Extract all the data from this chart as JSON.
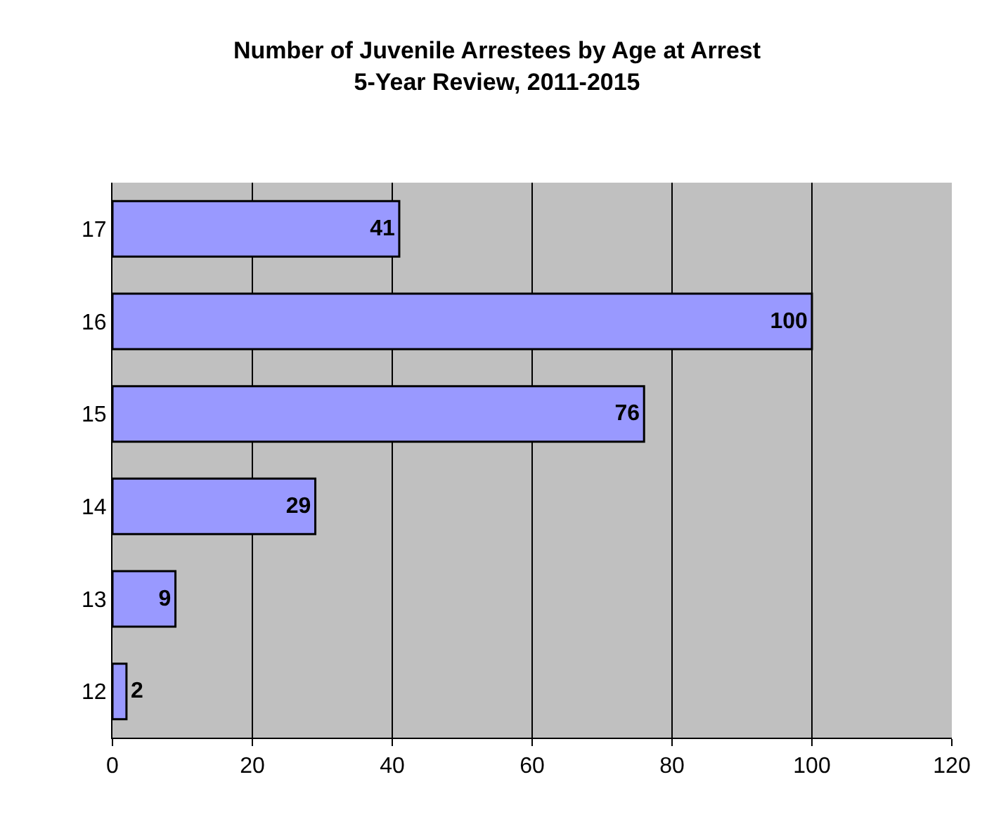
{
  "chart_data": {
    "type": "bar",
    "orientation": "horizontal",
    "title": "Number of Juvenile Arrestees by Age at Arrest\n5-Year Review, 2011-2015",
    "categories": [
      "17",
      "16",
      "15",
      "14",
      "13",
      "12"
    ],
    "values": [
      41,
      100,
      76,
      29,
      9,
      2
    ],
    "color": "#9999ff",
    "xlim": [
      0,
      120
    ],
    "xticks": [
      0,
      20,
      40,
      60,
      80,
      100,
      120
    ],
    "grid": "x",
    "data_labels": true
  }
}
